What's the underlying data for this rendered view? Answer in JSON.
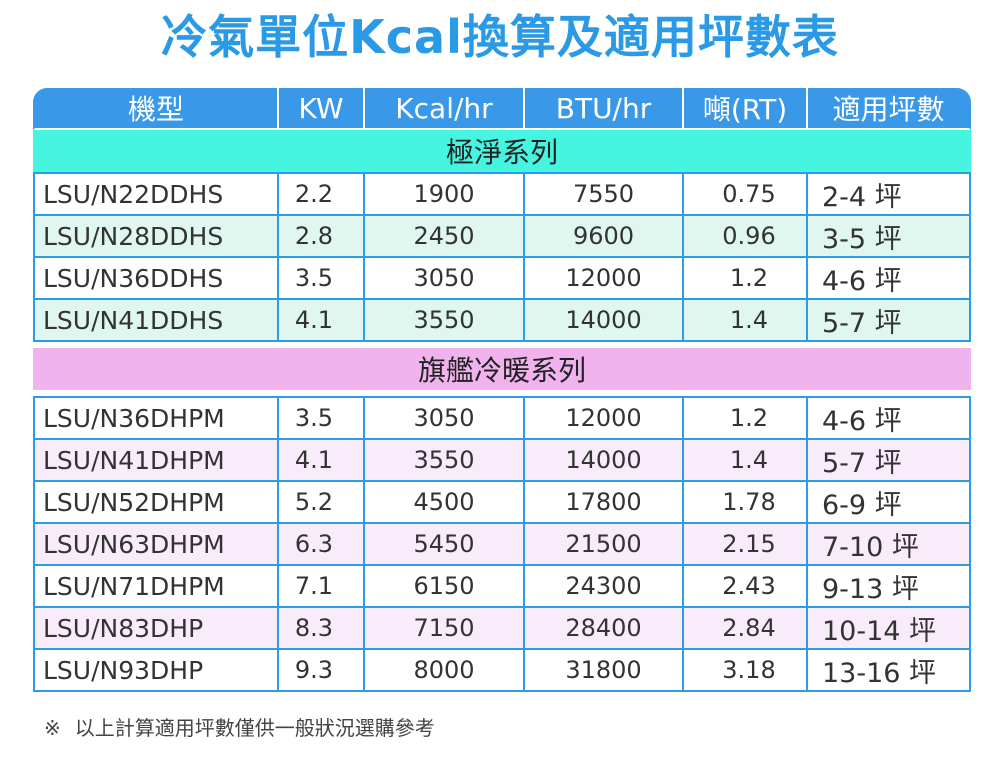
{
  "title": "冷氣單位Kcal換算及適用坪數表",
  "headers": [
    "機型",
    "KW",
    "Kcal/hr",
    "BTU/hr",
    "噸(RT)",
    "適用坪數"
  ],
  "sections": [
    {
      "name": "極淨系列",
      "rows": [
        [
          "LSU/N22DDHS",
          "2.2",
          "1900",
          "7550",
          "0.75",
          "2-4 坪"
        ],
        [
          "LSU/N28DDHS",
          "2.8",
          "2450",
          "9600",
          "0.96",
          "3-5 坪"
        ],
        [
          "LSU/N36DDHS",
          "3.5",
          "3050",
          "12000",
          "1.2",
          "4-6 坪"
        ],
        [
          "LSU/N41DDHS",
          "4.1",
          "3550",
          "14000",
          "1.4",
          "5-7 坪"
        ]
      ]
    },
    {
      "name": "旗艦冷暖系列",
      "rows": [
        [
          "LSU/N36DHPM",
          "3.5",
          "3050",
          "12000",
          "1.2",
          "4-6 坪"
        ],
        [
          "LSU/N41DHPM",
          "4.1",
          "3550",
          "14000",
          "1.4",
          "5-7 坪"
        ],
        [
          "LSU/N52DHPM",
          "5.2",
          "4500",
          "17800",
          "1.78",
          "6-9 坪"
        ],
        [
          "LSU/N63DHPM",
          "6.3",
          "5450",
          "21500",
          "2.15",
          "7-10 坪"
        ],
        [
          "LSU/N71DHPM",
          "7.1",
          "6150",
          "24300",
          "2.43",
          "9-13 坪"
        ],
        [
          "LSU/N83DHP",
          "8.3",
          "7150",
          "28400",
          "2.84",
          "10-14 坪"
        ],
        [
          "LSU/N93DHP",
          "9.3",
          "8000",
          "31800",
          "3.18",
          "13-16 坪"
        ]
      ]
    }
  ],
  "note": {
    "mark": "※",
    "text": "以上計算適用坪數僅供一般狀況選購參考"
  },
  "colors": {
    "title": "#2a9ae6",
    "header_bg": "#3a98e8",
    "border": "#2e9be6",
    "section_a_bg": "#46f5e0",
    "section_b_bg": "#f0b3ee",
    "band_a": "#dff7ee",
    "band_b": "#f8ecfa"
  }
}
